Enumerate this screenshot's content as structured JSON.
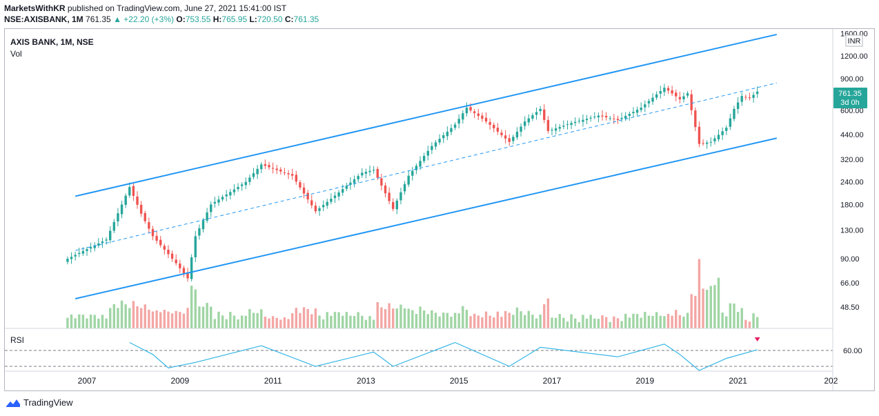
{
  "header": {
    "publisher": "MarketsWithKR",
    "published_text": "published on TradingView.com, June 27, 2021 15:41:00 IST",
    "symbol": "NSE:AXISBANK, 1M",
    "last": "761.35",
    "change": "▲ +22.20 (+3%)",
    "o_label": "O:",
    "o": "753.55",
    "h_label": "H:",
    "h": "765.95",
    "l_label": "L:",
    "l": "720.50",
    "c_label": "C:",
    "c": "761.35"
  },
  "pane": {
    "title": "AXIS BANK, 1M, NSE",
    "vol_label": "Vol",
    "rsi_label": "RSI",
    "currency": "INR",
    "price_tag": "761.35",
    "countdown": "3d 0h"
  },
  "footer": {
    "brand": "TradingView"
  },
  "colors": {
    "up": "#26a69a",
    "down": "#ef5350",
    "vol_up": "#9fd5a4",
    "vol_down": "#f3a6a4",
    "channel": "#2196f3",
    "rsi": "#33b5e5",
    "alert": "#e91e63"
  },
  "chart_data": {
    "type": "candlestick",
    "title": "AXIS BANK, 1M, NSE",
    "y_scale": "log",
    "y_ticks": [
      "1600.00",
      "1200.00",
      "900.00",
      "600.00",
      "440.00",
      "320.00",
      "240.00",
      "180.00",
      "130.00",
      "90.00",
      "66.00",
      "48.50"
    ],
    "x_ticks": [
      "2007",
      "2009",
      "2011",
      "2013",
      "2015",
      "2017",
      "2019",
      "2021",
      "202"
    ],
    "last_close": 761.35,
    "monthly_close_approx": [
      {
        "date": "2006-08",
        "close": 90
      },
      {
        "date": "2007-06",
        "close": 115
      },
      {
        "date": "2007-12",
        "close": 225
      },
      {
        "date": "2008-03",
        "close": 160
      },
      {
        "date": "2008-06",
        "close": 120
      },
      {
        "date": "2008-12",
        "close": 85
      },
      {
        "date": "2009-03",
        "close": 70
      },
      {
        "date": "2009-05",
        "close": 120
      },
      {
        "date": "2009-09",
        "close": 180
      },
      {
        "date": "2010-06",
        "close": 240
      },
      {
        "date": "2010-10",
        "close": 300
      },
      {
        "date": "2011-06",
        "close": 260
      },
      {
        "date": "2011-12",
        "close": 165
      },
      {
        "date": "2012-06",
        "close": 210
      },
      {
        "date": "2012-12",
        "close": 270
      },
      {
        "date": "2013-03",
        "close": 280
      },
      {
        "date": "2013-08",
        "close": 170
      },
      {
        "date": "2013-12",
        "close": 260
      },
      {
        "date": "2014-06",
        "close": 380
      },
      {
        "date": "2014-12",
        "close": 500
      },
      {
        "date": "2015-03",
        "close": 620
      },
      {
        "date": "2015-08",
        "close": 520
      },
      {
        "date": "2016-02",
        "close": 400
      },
      {
        "date": "2016-06",
        "close": 520
      },
      {
        "date": "2016-10",
        "close": 610
      },
      {
        "date": "2016-12",
        "close": 460
      },
      {
        "date": "2017-06",
        "close": 510
      },
      {
        "date": "2018-01",
        "close": 560
      },
      {
        "date": "2018-06",
        "close": 530
      },
      {
        "date": "2018-12",
        "close": 620
      },
      {
        "date": "2019-06",
        "close": 800
      },
      {
        "date": "2019-10",
        "close": 690
      },
      {
        "date": "2019-12",
        "close": 745
      },
      {
        "date": "2020-03",
        "close": 390
      },
      {
        "date": "2020-06",
        "close": 400
      },
      {
        "date": "2020-10",
        "close": 480
      },
      {
        "date": "2020-12",
        "close": 610
      },
      {
        "date": "2021-02",
        "close": 720
      },
      {
        "date": "2021-04",
        "close": 700
      },
      {
        "date": "2021-06",
        "close": 761.35
      }
    ],
    "channel": {
      "upper": [
        {
          "date": "2006-10",
          "price": 200
        },
        {
          "date": "2021-11",
          "price": 1580
        }
      ],
      "middle": [
        {
          "date": "2006-10",
          "price": 100
        },
        {
          "date": "2021-11",
          "price": 850
        }
      ],
      "lower": [
        {
          "date": "2006-10",
          "price": 54
        },
        {
          "date": "2021-11",
          "price": 420
        }
      ]
    },
    "rsi": {
      "label": "RSI",
      "levels": [
        60,
        40
      ],
      "tick": "60.00",
      "values_approx": [
        {
          "date": "2007-12",
          "value": 70
        },
        {
          "date": "2008-06",
          "value": 55
        },
        {
          "date": "2008-10",
          "value": 38
        },
        {
          "date": "2009-05",
          "value": 45
        },
        {
          "date": "2010-10",
          "value": 66
        },
        {
          "date": "2011-12",
          "value": 40
        },
        {
          "date": "2013-03",
          "value": 58
        },
        {
          "date": "2013-08",
          "value": 40
        },
        {
          "date": "2014-12",
          "value": 70
        },
        {
          "date": "2016-02",
          "value": 40
        },
        {
          "date": "2016-10",
          "value": 64
        },
        {
          "date": "2018-06",
          "value": 52
        },
        {
          "date": "2019-06",
          "value": 68
        },
        {
          "date": "2019-10",
          "value": 55
        },
        {
          "date": "2020-03",
          "value": 30
        },
        {
          "date": "2020-10",
          "value": 50
        },
        {
          "date": "2021-06",
          "value": 61
        }
      ]
    }
  }
}
